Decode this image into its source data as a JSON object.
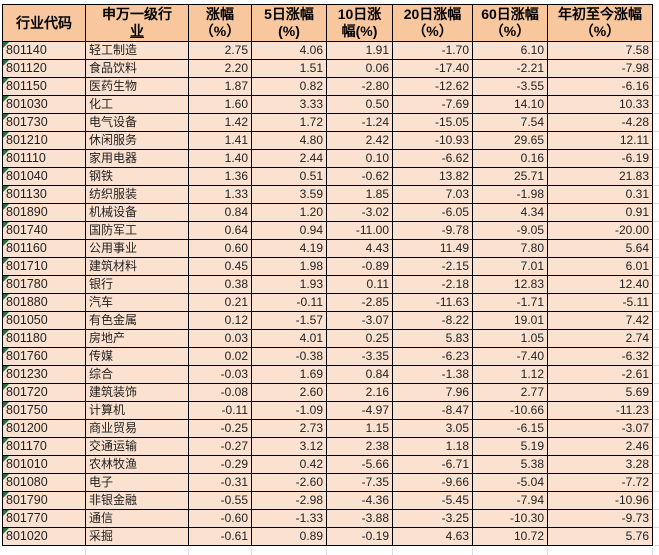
{
  "sheet": {
    "colors": {
      "header_bg": "#F8C79E",
      "row_bg": "#FBE1D0",
      "border": "#000000",
      "gridline": "#D9D9D9",
      "flag_green": "#1E7145",
      "text": "#1F1F1F"
    }
  },
  "table": {
    "columns": [
      {
        "id": "code",
        "line1": "行业代码",
        "line2": ""
      },
      {
        "id": "industry",
        "line1": "申万一级行",
        "line2": "业"
      },
      {
        "id": "chg",
        "line1": "涨幅",
        "line2": "（%）"
      },
      {
        "id": "chg_5d",
        "line1": "5日涨幅",
        "line2": "(%)"
      },
      {
        "id": "chg_10d",
        "line1": "10日涨",
        "line2": "幅(%)"
      },
      {
        "id": "chg_20d",
        "line1": "20日涨幅",
        "line2": "（%）"
      },
      {
        "id": "chg_60d",
        "line1": "60日涨幅",
        "line2": "（%）"
      },
      {
        "id": "chg_ytd",
        "line1": "年初至今涨幅",
        "line2": "（%）"
      }
    ],
    "rows": [
      [
        "801140",
        "轻工制造",
        "2.75",
        "4.06",
        "1.91",
        "-1.70",
        "6.10",
        "7.58"
      ],
      [
        "801120",
        "食品饮料",
        "2.20",
        "1.51",
        "0.06",
        "-17.40",
        "-2.21",
        "-7.98"
      ],
      [
        "801150",
        "医药生物",
        "1.87",
        "0.82",
        "-2.80",
        "-12.62",
        "-3.55",
        "-6.16"
      ],
      [
        "801030",
        "化工",
        "1.60",
        "3.33",
        "0.50",
        "-7.69",
        "14.10",
        "10.33"
      ],
      [
        "801730",
        "电气设备",
        "1.42",
        "1.72",
        "-1.24",
        "-15.05",
        "7.54",
        "-4.28"
      ],
      [
        "801210",
        "休闲服务",
        "1.41",
        "4.80",
        "2.42",
        "-10.93",
        "29.65",
        "12.11"
      ],
      [
        "801110",
        "家用电器",
        "1.40",
        "2.44",
        "0.10",
        "-6.62",
        "0.16",
        "-6.19"
      ],
      [
        "801040",
        "钢铁",
        "1.36",
        "0.51",
        "-0.62",
        "13.82",
        "25.71",
        "21.83"
      ],
      [
        "801130",
        "纺织服装",
        "1.33",
        "3.59",
        "1.85",
        "7.03",
        "-1.98",
        "0.31"
      ],
      [
        "801890",
        "机械设备",
        "0.84",
        "1.20",
        "-3.02",
        "-6.05",
        "4.34",
        "0.91"
      ],
      [
        "801740",
        "国防军工",
        "0.64",
        "0.94",
        "-11.00",
        "-9.78",
        "-9.05",
        "-20.00"
      ],
      [
        "801160",
        "公用事业",
        "0.60",
        "4.19",
        "4.43",
        "11.49",
        "7.80",
        "5.64"
      ],
      [
        "801710",
        "建筑材料",
        "0.45",
        "1.98",
        "-0.89",
        "-2.15",
        "7.01",
        "6.01"
      ],
      [
        "801780",
        "银行",
        "0.38",
        "1.93",
        "0.11",
        "-2.18",
        "12.83",
        "12.40"
      ],
      [
        "801880",
        "汽车",
        "0.21",
        "-0.11",
        "-2.85",
        "-11.63",
        "-1.71",
        "-5.11"
      ],
      [
        "801050",
        "有色金属",
        "0.12",
        "-1.57",
        "-3.07",
        "-8.22",
        "19.01",
        "7.42"
      ],
      [
        "801180",
        "房地产",
        "0.03",
        "4.01",
        "0.25",
        "5.83",
        "1.05",
        "2.74"
      ],
      [
        "801760",
        "传媒",
        "0.02",
        "-0.38",
        "-3.35",
        "-6.23",
        "-7.40",
        "-6.32"
      ],
      [
        "801230",
        "综合",
        "-0.03",
        "1.69",
        "0.84",
        "-1.38",
        "1.12",
        "-2.61"
      ],
      [
        "801720",
        "建筑装饰",
        "-0.08",
        "2.60",
        "2.16",
        "7.96",
        "2.77",
        "5.69"
      ],
      [
        "801750",
        "计算机",
        "-0.11",
        "-1.09",
        "-4.97",
        "-8.47",
        "-10.66",
        "-11.23"
      ],
      [
        "801200",
        "商业贸易",
        "-0.25",
        "2.73",
        "1.15",
        "3.05",
        "-6.15",
        "-3.07"
      ],
      [
        "801170",
        "交通运输",
        "-0.27",
        "3.12",
        "2.38",
        "1.18",
        "5.19",
        "2.46"
      ],
      [
        "801010",
        "农林牧渔",
        "-0.29",
        "0.42",
        "-5.66",
        "-6.71",
        "5.38",
        "3.28"
      ],
      [
        "801080",
        "电子",
        "-0.31",
        "-2.60",
        "-7.35",
        "-9.66",
        "-5.04",
        "-7.72"
      ],
      [
        "801790",
        "非银金融",
        "-0.55",
        "-2.98",
        "-4.36",
        "-5.45",
        "-7.94",
        "-10.96"
      ],
      [
        "801770",
        "通信",
        "-0.60",
        "-1.33",
        "-3.88",
        "-3.25",
        "-10.30",
        "-9.73"
      ],
      [
        "801020",
        "采掘",
        "-0.61",
        "0.89",
        "-0.19",
        "4.63",
        "10.72",
        "5.76"
      ]
    ]
  }
}
